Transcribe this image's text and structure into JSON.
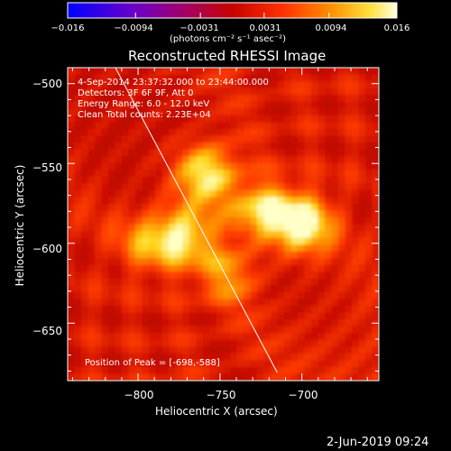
{
  "colorbar": {
    "ticks": [
      "−0.016",
      "−0.0094",
      "−0.0031",
      "0.0031",
      "0.0094",
      "0.016"
    ],
    "units": "(photons cm⁻² s⁻¹ asec⁻²)"
  },
  "plot": {
    "title": "Reconstructed RHESSI Image",
    "xlabel": "Heliocentric X (arcsec)",
    "ylabel": "Heliocentric Y (arcsec)",
    "xticks": [
      "−800",
      "−750",
      "−700"
    ],
    "yticks": [
      "−500",
      "−550",
      "−600",
      "−650"
    ],
    "info": [
      "4‑Sep‑2014 23:37:32.000 to 23:44:00.000",
      "Detectors: 3F 6F 9F, Att 0",
      "Energy Range: 6.0 - 12.0 keV",
      "Clean    Total counts: 2.23E+04"
    ],
    "peak_label": "Position of Peak = [-698,-588]"
  },
  "footer": {
    "date": "2-Jun-2019 09:24"
  },
  "chart_data": {
    "type": "heatmap",
    "title": "Reconstructed RHESSI Image",
    "xlabel": "Heliocentric X (arcsec)",
    "ylabel": "Heliocentric Y (arcsec)",
    "xlim": [
      -843,
      -653
    ],
    "ylim": [
      -686,
      -490
    ],
    "colorbar_range": [
      -0.016,
      0.016
    ],
    "colormap": "red-temperature",
    "peak": [
      -698,
      -588
    ],
    "sources": [
      {
        "x": -700,
        "y": -588,
        "intensity": 1.0
      },
      {
        "x": -758,
        "y": -556,
        "intensity": 0.9
      },
      {
        "x": -725,
        "y": -580,
        "intensity": 0.75
      },
      {
        "x": -772,
        "y": -595,
        "intensity": 0.85
      },
      {
        "x": -745,
        "y": -620,
        "intensity": 0.5
      },
      {
        "x": -795,
        "y": -600,
        "intensity": 0.45
      }
    ],
    "limb": [
      [
        -818,
        -482
      ],
      [
        -715,
        -681
      ]
    ],
    "grid": false
  }
}
